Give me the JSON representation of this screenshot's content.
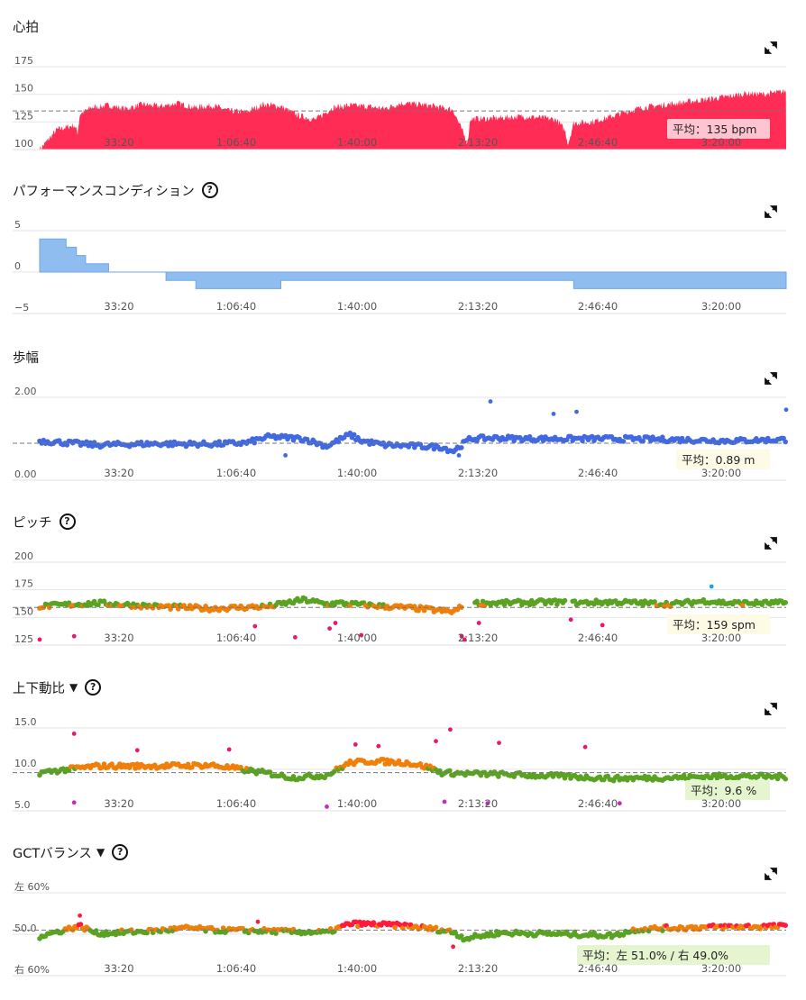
{
  "x_ticks": [
    "33:20",
    "1:06:40",
    "1:40:00",
    "2:13:20",
    "2:46:40",
    "3:20:00"
  ],
  "icons": {
    "expand": "expand-icon",
    "help": "help-icon"
  },
  "chart_data": [
    {
      "id": "heart-rate",
      "type": "area",
      "title": "心拍",
      "has_help": false,
      "has_dropdown": false,
      "x_unit": "seconds",
      "x_range": [
        0,
        13000
      ],
      "y_ticks": [
        "175",
        "150",
        "125",
        "100"
      ],
      "ylim": [
        100,
        175
      ],
      "color": "#ff2d55",
      "avg_value": 135,
      "avg_label": "平均：135 bpm",
      "avg_box": "#ffc4cf",
      "series": [
        {
          "x": [
            0,
            300,
            600,
            660,
            700,
            900,
            1200,
            1500,
            1800,
            2100,
            2400,
            2700,
            3000,
            3300,
            3600,
            3900,
            4200,
            4500,
            4800,
            5100,
            5400,
            5700,
            6000,
            6300,
            6600,
            6900,
            7200,
            7400,
            7450,
            7500,
            7800,
            8100,
            8400,
            8700,
            9000,
            9150,
            9200,
            9300,
            9600,
            9900,
            10200,
            10500,
            10800,
            11100,
            11400,
            11700,
            12000,
            12300,
            12600,
            12900,
            13000
          ],
          "y": [
            100,
            118,
            122,
            115,
            132,
            138,
            140,
            137,
            141,
            139,
            142,
            138,
            140,
            135,
            134,
            141,
            139,
            131,
            127,
            138,
            140,
            139,
            137,
            142,
            141,
            139,
            136,
            112,
            106,
            128,
            128,
            129,
            130,
            129,
            127,
            117,
            105,
            124,
            125,
            129,
            134,
            138,
            140,
            142,
            144,
            146,
            148,
            151,
            150,
            152,
            153
          ]
        }
      ]
    },
    {
      "id": "performance-condition",
      "type": "step-area",
      "title": "パフォーマンスコンディション",
      "has_help": true,
      "has_dropdown": false,
      "x_unit": "seconds",
      "x_range": [
        0,
        13000
      ],
      "y_ticks": [
        "5",
        "0",
        "−5"
      ],
      "ylim": [
        -5,
        5
      ],
      "color": "#8fbdf0",
      "series": [
        {
          "x": [
            0,
            460,
            640,
            800,
            1200,
            2200,
            2720,
            4200,
            9120,
            9300,
            13000
          ],
          "y": [
            4,
            3,
            2,
            1,
            0,
            -1,
            -2,
            -1,
            -1,
            -2,
            -2
          ]
        }
      ]
    },
    {
      "id": "stride-length",
      "type": "scatter",
      "title": "歩幅",
      "has_help": false,
      "has_dropdown": false,
      "x_unit": "seconds",
      "x_range": [
        0,
        13000
      ],
      "y_ticks": [
        "2.00",
        "0.00"
      ],
      "ylim": [
        0,
        2
      ],
      "color": "#4169e1",
      "avg_value": 0.89,
      "avg_label": "平均：0.89 m",
      "avg_box": "#fdfbe6",
      "series": [
        {
          "name": "stride",
          "x": [
            0,
            1000,
            2000,
            3000,
            3600,
            4000,
            4600,
            5000,
            5400,
            5600,
            6000,
            7000,
            7200,
            7500,
            8000,
            8400,
            9000,
            10000,
            11000,
            12000,
            13000
          ],
          "y": [
            0.95,
            0.85,
            0.88,
            0.87,
            0.9,
            1.05,
            1.0,
            0.82,
            1.1,
            0.95,
            0.85,
            0.8,
            0.7,
            1.0,
            1.02,
            1.0,
            1.0,
            1.0,
            0.98,
            0.95,
            0.98
          ]
        }
      ],
      "outliers": [
        {
          "x": 7850,
          "y": 1.9
        },
        {
          "x": 8950,
          "y": 1.6
        },
        {
          "x": 9350,
          "y": 1.65
        },
        {
          "x": 13000,
          "y": 1.7
        },
        {
          "x": 4280,
          "y": 0.6
        },
        {
          "x": 7300,
          "y": 0.6
        }
      ]
    },
    {
      "id": "cadence",
      "type": "scatter",
      "title": "ピッチ",
      "has_help": true,
      "has_dropdown": false,
      "x_unit": "seconds",
      "x_range": [
        0,
        13000
      ],
      "y_ticks": [
        "200",
        "175",
        "150",
        "125"
      ],
      "ylim": [
        125,
        200
      ],
      "zone_colors": [
        "#e8186d",
        "#f07f09",
        "#5aa322",
        "#1ea5e0"
      ],
      "avg_value": 159,
      "avg_label": "平均：159 spm",
      "avg_box": "#fdfbe6",
      "series": [
        {
          "name": "cadence",
          "x": [
            0,
            1000,
            2000,
            3000,
            4000,
            4600,
            5000,
            5200,
            6000,
            6600,
            7000,
            7200,
            7300,
            7500,
            8000,
            9000,
            9200,
            10000,
            11000,
            11600,
            12000,
            13000
          ],
          "y": [
            160,
            163,
            160,
            158,
            160,
            166,
            162,
            163,
            160,
            158,
            156,
            155,
            158,
            163,
            163,
            164,
            163,
            164,
            162,
            165,
            163,
            163
          ]
        }
      ],
      "outliers": [
        {
          "x": 0,
          "y": 130
        },
        {
          "x": 600,
          "y": 133
        },
        {
          "x": 3750,
          "y": 142
        },
        {
          "x": 4450,
          "y": 132
        },
        {
          "x": 5050,
          "y": 140
        },
        {
          "x": 5150,
          "y": 145
        },
        {
          "x": 5600,
          "y": 134
        },
        {
          "x": 7400,
          "y": 130
        },
        {
          "x": 7650,
          "y": 145
        },
        {
          "x": 9250,
          "y": 148
        },
        {
          "x": 9800,
          "y": 143
        },
        {
          "x": 11700,
          "y": 178
        },
        {
          "x": 7350,
          "y": 133
        }
      ]
    },
    {
      "id": "vertical-ratio",
      "type": "scatter",
      "title": "上下動比",
      "has_help": true,
      "has_dropdown": true,
      "x_unit": "seconds",
      "x_range": [
        0,
        13000
      ],
      "y_ticks": [
        "15.0",
        "10.0",
        "5.0"
      ],
      "ylim": [
        5,
        15
      ],
      "zone_colors": [
        "#c62ac1",
        "#e8186d",
        "#f07f09",
        "#5aa322",
        "#1ea5e0"
      ],
      "avg_value": 9.6,
      "avg_label": "平均：9.6 %",
      "avg_box": "#e4f5cf",
      "series": [
        {
          "name": "vertical-ratio",
          "x": [
            0,
            1000,
            2000,
            3000,
            3500,
            4000,
            4400,
            5000,
            5400,
            5800,
            6400,
            6800,
            7000,
            7400,
            8000,
            9000,
            10000,
            11000,
            12000,
            13000
          ],
          "y": [
            9.6,
            10.4,
            10.4,
            10.5,
            10.0,
            9.5,
            9.0,
            9.3,
            10.8,
            11.0,
            10.8,
            10.2,
            9.6,
            9.5,
            9.4,
            9.2,
            8.9,
            9.0,
            9.2,
            9.1
          ]
        }
      ],
      "outliers": [
        {
          "x": 600,
          "y": 14.3
        },
        {
          "x": 600,
          "y": 6.0
        },
        {
          "x": 1700,
          "y": 12.3
        },
        {
          "x": 3300,
          "y": 12.4
        },
        {
          "x": 5000,
          "y": 5.5
        },
        {
          "x": 5500,
          "y": 13.0
        },
        {
          "x": 5900,
          "y": 12.8
        },
        {
          "x": 6900,
          "y": 13.4
        },
        {
          "x": 7150,
          "y": 14.8
        },
        {
          "x": 7050,
          "y": 6.1
        },
        {
          "x": 7800,
          "y": 5.9
        },
        {
          "x": 8000,
          "y": 13.2
        },
        {
          "x": 9500,
          "y": 12.7
        },
        {
          "x": 10100,
          "y": 5.9
        }
      ]
    },
    {
      "id": "gct-balance",
      "type": "scatter",
      "title": "GCTバランス",
      "has_help": true,
      "has_dropdown": true,
      "x_unit": "seconds",
      "x_range": [
        0,
        13000
      ],
      "y_ticks": [
        "左 60%",
        "50.0",
        "右 60%"
      ],
      "ylim": [
        -10,
        10
      ],
      "zone_colors": [
        "#ff1a3d",
        "#f07f09",
        "#5aa322"
      ],
      "avg_value": 1.0,
      "avg_label": "平均：左 51.0% / 右 49.0%",
      "avg_box": "#e4f5cf",
      "series": [
        {
          "name": "gct-balance",
          "x": [
            0,
            700,
            1000,
            2000,
            2600,
            3000,
            4000,
            4400,
            4800,
            5000,
            5400,
            5800,
            6400,
            7000,
            7200,
            7400,
            8000,
            9000,
            10000,
            10400,
            11000,
            12000,
            13000
          ],
          "y": [
            -0.5,
            2.0,
            0.2,
            0.8,
            1.5,
            1.0,
            0.8,
            0.6,
            0.5,
            0.4,
            2.5,
            2.4,
            2.0,
            1.0,
            0.5,
            -1.0,
            0.3,
            0.1,
            -0.3,
            1.2,
            1.5,
            1.8,
            1.9
          ]
        }
      ],
      "outliers": [
        {
          "x": 700,
          "y": 4.5
        },
        {
          "x": 3800,
          "y": 3.0
        },
        {
          "x": 7200,
          "y": -3.0
        },
        {
          "x": 11000,
          "y": -4.5
        }
      ]
    }
  ]
}
